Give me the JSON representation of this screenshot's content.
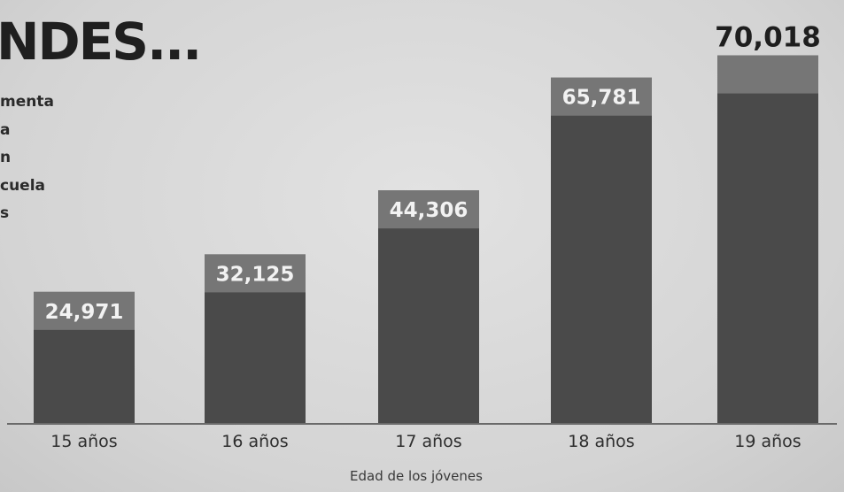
{
  "header": {
    "title": "NDES...",
    "subtitle_lines": [
      "menta",
      "a",
      "n",
      "cuela",
      "s"
    ]
  },
  "chart_data": {
    "type": "bar",
    "categories": [
      "15 años",
      "16 años",
      "17 años",
      "18 años",
      "19 años"
    ],
    "values": [
      24971,
      32125,
      44306,
      65781,
      70018
    ],
    "value_labels": [
      "24,971",
      "32,125",
      "44,306",
      "65,781",
      "70,018"
    ],
    "xlabel": "Edad de los jóvenes",
    "ylabel": "",
    "ylim": [
      0,
      74500
    ],
    "grid": false,
    "legend": "none",
    "colors": {
      "bar": "#4a4a4a",
      "bar_top": "#767676",
      "axis": "#6a6a6a"
    }
  }
}
